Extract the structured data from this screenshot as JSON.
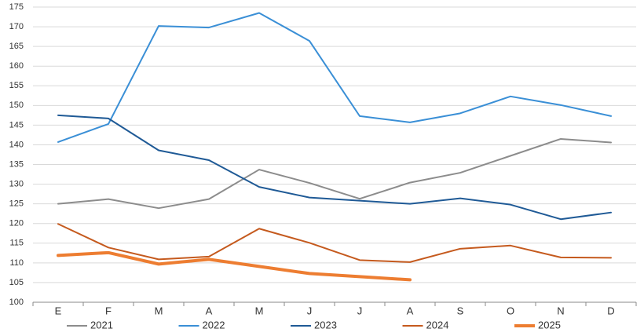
{
  "chart_data": {
    "type": "line",
    "categories": [
      "E",
      "F",
      "M",
      "A",
      "M",
      "J",
      "J",
      "A",
      "S",
      "O",
      "N",
      "D"
    ],
    "series": [
      {
        "name": "2021",
        "color": "#8c8c8c",
        "line_width": 2,
        "values": [
          125,
          126.2,
          123.9,
          126.2,
          133.7,
          130.3,
          126.3,
          130.4,
          132.9,
          137.2,
          141.5,
          140.6
        ]
      },
      {
        "name": "2022",
        "color": "#3a8fd6",
        "line_width": 2,
        "values": [
          140.7,
          145.3,
          170.2,
          169.8,
          173.5,
          166.4,
          147.3,
          145.7,
          148,
          152.3,
          150.1,
          147.3
        ]
      },
      {
        "name": "2023",
        "color": "#1f5a96",
        "line_width": 2,
        "values": [
          147.5,
          146.7,
          138.6,
          136.1,
          129.3,
          126.6,
          125.8,
          125,
          126.4,
          124.8,
          121.1,
          122.8
        ]
      },
      {
        "name": "2024",
        "color": "#c55a1e",
        "line_width": 2,
        "values": [
          119.9,
          113.9,
          110.9,
          111.6,
          118.7,
          115.1,
          110.7,
          110.2,
          113.6,
          114.4,
          111.4,
          111.3
        ]
      },
      {
        "name": "2025",
        "color": "#ed7d31",
        "line_width": 4,
        "values": [
          111.9,
          112.6,
          109.7,
          110.9,
          109.1,
          107.3,
          106.5,
          105.7,
          null,
          null,
          null,
          null
        ]
      }
    ],
    "ylim": [
      100,
      175
    ],
    "yticks": [
      100,
      105,
      110,
      115,
      120,
      125,
      130,
      135,
      140,
      145,
      150,
      155,
      160,
      165,
      170,
      175
    ],
    "grid": true,
    "legend": "bottom"
  }
}
